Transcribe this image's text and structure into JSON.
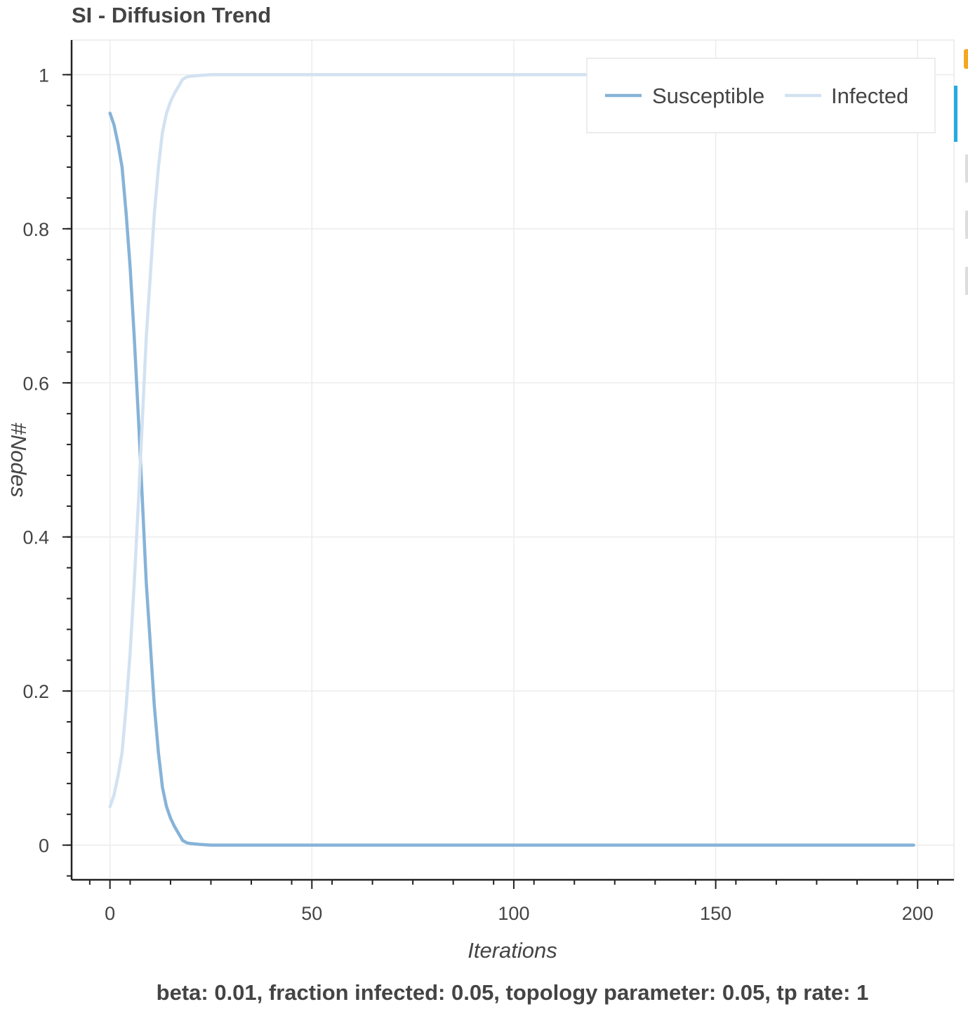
{
  "chart_data": {
    "type": "line",
    "title": "SI - Diffusion Trend",
    "xlabel": "Iterations",
    "ylabel": "#Nodes",
    "footer": "beta: 0.01, fraction infected: 0.05, topology parameter: 0.05, tp rate: 1",
    "xlim": [
      -9.5,
      209
    ],
    "ylim": [
      -0.045,
      1.045
    ],
    "x_ticks": [
      0,
      50,
      100,
      150,
      200
    ],
    "y_ticks": [
      0,
      0.2,
      0.4,
      0.6,
      0.8,
      1
    ],
    "y_tick_labels": [
      "0",
      "0.2",
      "0.4",
      "0.6",
      "0.8",
      "1"
    ],
    "grid": true,
    "legend": "top-right",
    "series": [
      {
        "name": "Susceptible",
        "color": "#86b3d8",
        "x": [
          0,
          1,
          2,
          3,
          4,
          5,
          6,
          7,
          8,
          9,
          10,
          11,
          12,
          13,
          14,
          15,
          16,
          17,
          18,
          19,
          20,
          22,
          25,
          30,
          50,
          100,
          150,
          199
        ],
        "y": [
          0.95,
          0.935,
          0.91,
          0.88,
          0.82,
          0.75,
          0.66,
          0.56,
          0.45,
          0.34,
          0.26,
          0.18,
          0.12,
          0.075,
          0.05,
          0.035,
          0.024,
          0.015,
          0.006,
          0.003,
          0.002,
          0.001,
          0.0,
          0.0,
          0.0,
          0.0,
          0.0,
          0.0
        ]
      },
      {
        "name": "Infected",
        "color": "#d3e2f1",
        "x": [
          0,
          1,
          2,
          3,
          4,
          5,
          6,
          7,
          8,
          9,
          10,
          11,
          12,
          13,
          14,
          15,
          16,
          17,
          18,
          19,
          20,
          22,
          25,
          30,
          50,
          100,
          150,
          199
        ],
        "y": [
          0.05,
          0.065,
          0.09,
          0.12,
          0.18,
          0.25,
          0.34,
          0.44,
          0.55,
          0.66,
          0.74,
          0.82,
          0.88,
          0.925,
          0.95,
          0.965,
          0.976,
          0.985,
          0.994,
          0.997,
          0.998,
          0.999,
          1.0,
          1.0,
          1.0,
          1.0,
          1.0,
          1.0
        ]
      }
    ]
  }
}
